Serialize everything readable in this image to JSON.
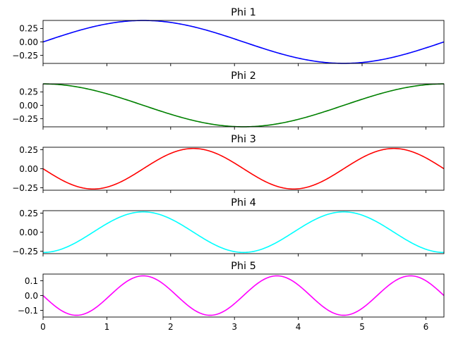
{
  "chart_data": [
    {
      "type": "line",
      "title": "Phi 1",
      "xlim": [
        0,
        6.283
      ],
      "ylim": [
        -0.4,
        0.4
      ],
      "yticks": [
        0.25,
        0.0,
        -0.25
      ],
      "ytick_labels": [
        "0.25",
        "0.00",
        "−0.25"
      ],
      "xticks": [
        0,
        1,
        2,
        3,
        4,
        5,
        6
      ],
      "xtick_labels": [],
      "series": [
        {
          "color": "#0000ff",
          "amplitude": 0.399,
          "function": "sin",
          "frequency": 1
        }
      ]
    },
    {
      "type": "line",
      "title": "Phi 2",
      "xlim": [
        0,
        6.283
      ],
      "ylim": [
        -0.4,
        0.4
      ],
      "yticks": [
        0.25,
        0.0,
        -0.25
      ],
      "ytick_labels": [
        "0.25",
        "0.00",
        "−0.25"
      ],
      "xticks": [
        0,
        1,
        2,
        3,
        4,
        5,
        6
      ],
      "xtick_labels": [],
      "series": [
        {
          "color": "#008000",
          "amplitude": 0.399,
          "function": "cos",
          "frequency": 1
        }
      ]
    },
    {
      "type": "line",
      "title": "Phi 3",
      "xlim": [
        0,
        6.283
      ],
      "ylim": [
        -0.282,
        0.282
      ],
      "yticks": [
        0.25,
        0.0,
        -0.25
      ],
      "ytick_labels": [
        "0.25",
        "0.00",
        "−0.25"
      ],
      "xticks": [
        0,
        1,
        2,
        3,
        4,
        5,
        6
      ],
      "xtick_labels": [],
      "series": [
        {
          "color": "#ff0000",
          "amplitude": -0.266,
          "function": "sin",
          "frequency": 2
        }
      ]
    },
    {
      "type": "line",
      "title": "Phi 4",
      "xlim": [
        0,
        6.283
      ],
      "ylim": [
        -0.282,
        0.282
      ],
      "yticks": [
        0.25,
        0.0,
        -0.25
      ],
      "ytick_labels": [
        "0.25",
        "0.00",
        "−0.25"
      ],
      "xticks": [
        0,
        1,
        2,
        3,
        4,
        5,
        6
      ],
      "xtick_labels": [],
      "series": [
        {
          "color": "#00ffff",
          "amplitude": -0.266,
          "function": "cos",
          "frequency": 2
        }
      ]
    },
    {
      "type": "line",
      "title": "Phi 5",
      "xlim": [
        0,
        6.283
      ],
      "ylim": [
        -0.145,
        0.145
      ],
      "yticks": [
        0.1,
        0.0,
        -0.1
      ],
      "ytick_labels": [
        "0.1",
        "0.0",
        "−0.1"
      ],
      "xticks": [
        0,
        1,
        2,
        3,
        4,
        5,
        6
      ],
      "xtick_labels": [
        "0",
        "1",
        "2",
        "3",
        "4",
        "5",
        "6"
      ],
      "series": [
        {
          "color": "#ff00ff",
          "amplitude": -0.133,
          "function": "sin",
          "frequency": 3
        }
      ]
    }
  ]
}
